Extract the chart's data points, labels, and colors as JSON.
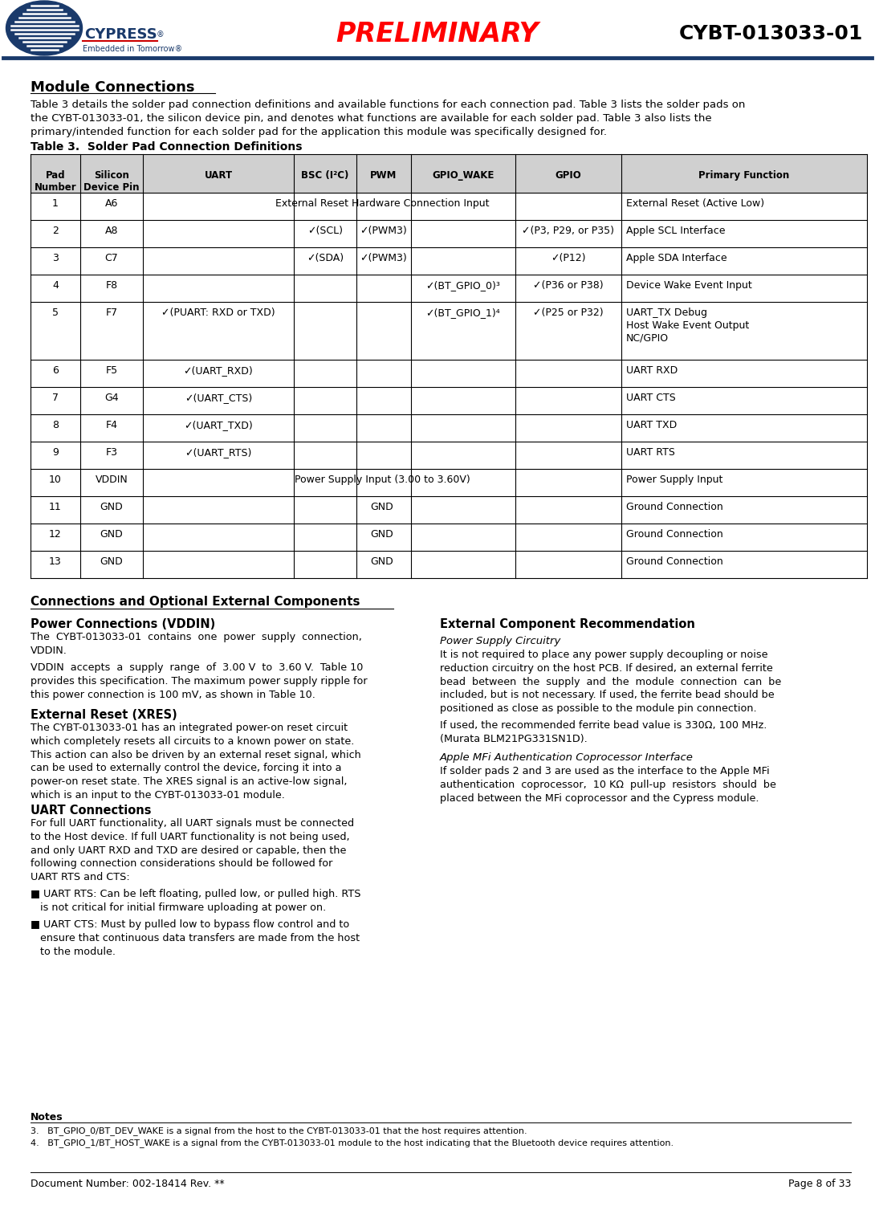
{
  "header_preliminary": "PRELIMINARY",
  "header_product": "CYBT-013033-01",
  "doc_number": "Document Number: 002-18414 Rev. **",
  "page_info": "Page 8 of 33",
  "section_title": "Module Connections",
  "table_title": "Table 3.  Solder Pad Connection Definitions",
  "table_headers": [
    "Pad\nNumber",
    "Silicon\nDevice Pin",
    "UART",
    "BSC (I²C)",
    "PWM",
    "GPIO_WAKE",
    "GPIO",
    "Primary Function"
  ],
  "table_rows": [
    [
      "1",
      "A6",
      "External Reset Hardware Connection Input",
      "",
      "",
      "",
      "",
      "External Reset (Active Low)"
    ],
    [
      "2",
      "A8",
      "",
      "✓(SCL)",
      "✓(PWM3)",
      "",
      "✓(P3, P29, or P35)",
      "Apple SCL Interface"
    ],
    [
      "3",
      "C7",
      "",
      "✓(SDA)",
      "✓(PWM3)",
      "",
      "✓(P12)",
      "Apple SDA Interface"
    ],
    [
      "4",
      "F8",
      "",
      "",
      "",
      "✓(BT_GPIO_0)³",
      "✓(P36 or P38)",
      "Device Wake Event Input"
    ],
    [
      "5",
      "F7",
      "✓(PUART: RXD or TXD)",
      "",
      "",
      "✓(BT_GPIO_1)⁴",
      "✓(P25 or P32)",
      "UART_TX Debug\nHost Wake Event Output\nNC/GPIO"
    ],
    [
      "6",
      "F5",
      "✓(UART_RXD)",
      "",
      "",
      "",
      "",
      "UART RXD"
    ],
    [
      "7",
      "G4",
      "✓(UART_CTS)",
      "",
      "",
      "",
      "",
      "UART CTS"
    ],
    [
      "8",
      "F4",
      "✓(UART_TXD)",
      "",
      "",
      "",
      "",
      "UART TXD"
    ],
    [
      "9",
      "F3",
      "✓(UART_RTS)",
      "",
      "",
      "",
      "",
      "UART RTS"
    ],
    [
      "10",
      "VDDIN",
      "Power Supply Input (3.00 to 3.60V)",
      "",
      "",
      "",
      "",
      "Power Supply Input"
    ],
    [
      "11",
      "GND",
      "GND",
      "",
      "",
      "",
      "",
      "Ground Connection"
    ],
    [
      "12",
      "GND",
      "GND",
      "",
      "",
      "",
      "",
      "Ground Connection"
    ],
    [
      "13",
      "GND",
      "GND",
      "",
      "",
      "",
      "",
      "Ground Connection"
    ]
  ],
  "section2_title": "Connections and Optional External Components",
  "notes_title": "Notes",
  "notes": [
    "3.   BT_GPIO_0/BT_DEV_WAKE is a signal from the host to the CYBT-013033-01 that the host requires attention.",
    "4.   BT_GPIO_1/BT_HOST_WAKE is a signal from the CYBT-013033-01 module to the host indicating that the Bluetooth device requires attention."
  ],
  "bg_color": "#ffffff",
  "table_header_bg": "#d0d0d0",
  "link_color": "#4472c4",
  "preliminary_color": "#ff0000",
  "header_line_color": "#1a3a6b",
  "cypress_blue": "#1a3a6b"
}
